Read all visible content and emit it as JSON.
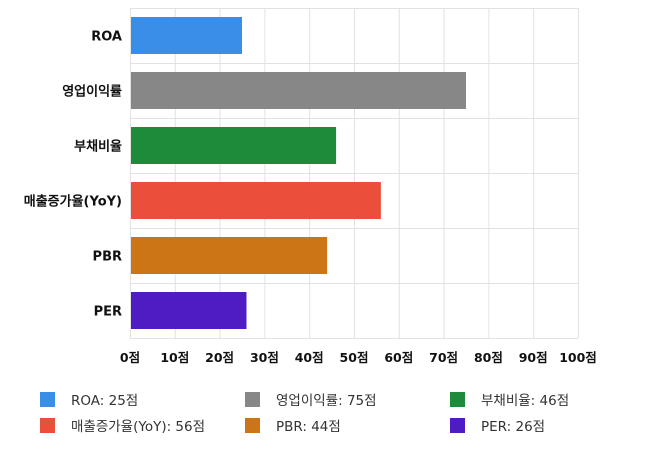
{
  "chart_data": {
    "type": "bar",
    "orientation": "horizontal",
    "title": "",
    "xlabel": "",
    "ylabel": "",
    "xlim": [
      0,
      100
    ],
    "x_ticks": [
      0,
      10,
      20,
      30,
      40,
      50,
      60,
      70,
      80,
      90,
      100
    ],
    "tick_suffix": "점",
    "grid": true,
    "legend_position": "bottom",
    "categories": [
      "ROA",
      "영업이익률",
      "부채비율",
      "매출증가율(YoY)",
      "PBR",
      "PER"
    ],
    "values": [
      25,
      75,
      46,
      56,
      44,
      26
    ],
    "colors": [
      "#3b8ee8",
      "#878787",
      "#1e8b3a",
      "#ec4e3c",
      "#cc7516",
      "#4f1bc2"
    ],
    "legend": [
      {
        "label": "ROA: 25점",
        "color": "#3b8ee8"
      },
      {
        "label": "영업이익률: 75점",
        "color": "#878787"
      },
      {
        "label": "부채비율: 46점",
        "color": "#1e8b3a"
      },
      {
        "label": "매출증가율(YoY): 56점",
        "color": "#ec4e3c"
      },
      {
        "label": "PBR: 44점",
        "color": "#cc7516"
      },
      {
        "label": "PER: 26점",
        "color": "#4f1bc2"
      }
    ]
  }
}
